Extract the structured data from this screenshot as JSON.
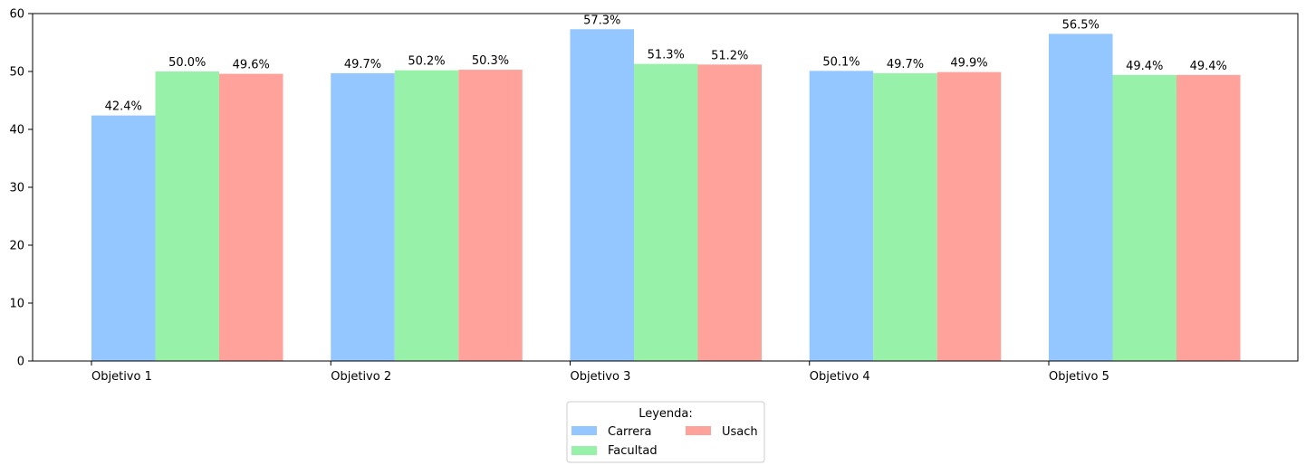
{
  "chart_data": {
    "type": "bar",
    "categories": [
      "Objetivo 1",
      "Objetivo 2",
      "Objetivo 3",
      "Objetivo 4",
      "Objetivo 5"
    ],
    "series": [
      {
        "name": "Carrera",
        "values": [
          42.4,
          49.7,
          57.3,
          50.1,
          56.5
        ],
        "labels": [
          "42.4%",
          "49.7%",
          "57.3%",
          "50.1%",
          "56.5%"
        ],
        "color": "#94c6ff"
      },
      {
        "name": "Facultad",
        "values": [
          50.0,
          50.2,
          51.3,
          49.7,
          49.4
        ],
        "labels": [
          "50.0%",
          "50.2%",
          "51.3%",
          "49.7%",
          "49.4%"
        ],
        "color": "#98f1a8"
      },
      {
        "name": "Usach",
        "values": [
          49.6,
          50.3,
          51.2,
          49.9,
          49.4
        ],
        "labels": [
          "49.6%",
          "50.3%",
          "51.2%",
          "49.9%",
          "49.4%"
        ],
        "color": "#ffa29b"
      }
    ],
    "yticks": [
      "0",
      "10",
      "20",
      "30",
      "40",
      "50",
      "60"
    ],
    "ylim": [
      0,
      60
    ],
    "grid": false,
    "legend": {
      "title": "Leyenda:",
      "placement": "bottom-center"
    }
  }
}
